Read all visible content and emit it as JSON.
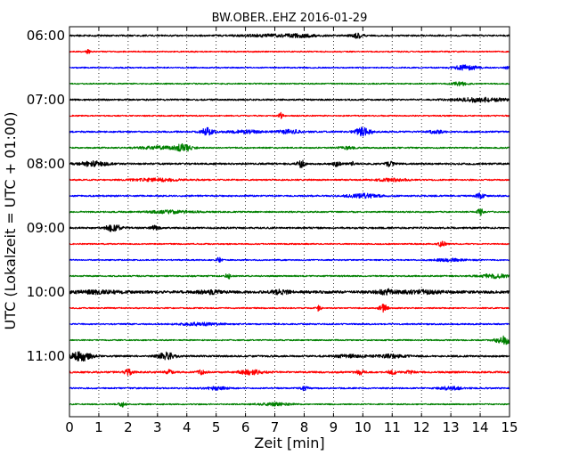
{
  "chart_data": {
    "type": "line",
    "title": "BW.OBER..EHZ 2016-01-29",
    "xlabel": "Zeit  [min]",
    "ylabel": "UTC (Lokalzeit = UTC + 01:00)",
    "xlim": [
      0,
      15
    ],
    "x_ticks": [
      "0",
      "1",
      "2",
      "3",
      "4",
      "5",
      "6",
      "7",
      "8",
      "9",
      "10",
      "11",
      "12",
      "13",
      "14",
      "15"
    ],
    "y_ticks": [
      "06:00",
      "07:00",
      "08:00",
      "09:00",
      "10:00",
      "11:00"
    ],
    "grid": "vertical dotted lines at each minute",
    "trace_interval_min": 15,
    "color_cycle": [
      "#000000",
      "#ff0000",
      "#0000ff",
      "#008000"
    ],
    "traces": [
      {
        "start": "06:00",
        "color": "#000000",
        "noise": 0.9,
        "events": [
          [
            7.0,
            0.8,
            1.2
          ],
          [
            8.0,
            0.3,
            1.2
          ],
          [
            9.8,
            0.15,
            2.4
          ]
        ]
      },
      {
        "start": "06:15",
        "color": "#ff0000",
        "noise": 0.7,
        "events": [
          [
            0.65,
            0.05,
            2.5
          ]
        ]
      },
      {
        "start": "06:30",
        "color": "#0000ff",
        "noise": 0.7,
        "events": [
          [
            13.5,
            0.3,
            2.5
          ],
          [
            15.0,
            0.1,
            2.0
          ]
        ]
      },
      {
        "start": "06:45",
        "color": "#008000",
        "noise": 0.7,
        "events": [
          [
            13.3,
            0.2,
            1.8
          ]
        ]
      },
      {
        "start": "07:00",
        "color": "#000000",
        "noise": 0.9,
        "events": [
          [
            14.0,
            0.6,
            2.2
          ]
        ]
      },
      {
        "start": "07:15",
        "color": "#ff0000",
        "noise": 0.7,
        "events": [
          [
            7.2,
            0.06,
            3.0
          ]
        ]
      },
      {
        "start": "07:30",
        "color": "#0000ff",
        "noise": 0.9,
        "events": [
          [
            4.7,
            0.15,
            4.0
          ],
          [
            6.0,
            0.4,
            1.5
          ],
          [
            7.5,
            0.3,
            2.0
          ],
          [
            10.0,
            0.2,
            4.5
          ],
          [
            12.5,
            0.2,
            1.5
          ]
        ]
      },
      {
        "start": "07:45",
        "color": "#008000",
        "noise": 0.8,
        "events": [
          [
            3.0,
            0.5,
            1.5
          ],
          [
            3.9,
            0.2,
            3.8
          ],
          [
            9.5,
            0.2,
            1.5
          ]
        ]
      },
      {
        "start": "08:00",
        "color": "#000000",
        "noise": 1.0,
        "events": [
          [
            0.8,
            0.35,
            2.5
          ],
          [
            7.9,
            0.1,
            3.5
          ],
          [
            9.1,
            0.1,
            2.5
          ],
          [
            9.7,
            0.1,
            2.0
          ],
          [
            10.9,
            0.1,
            2.5
          ]
        ]
      },
      {
        "start": "08:15",
        "color": "#ff0000",
        "noise": 0.8,
        "events": [
          [
            3.0,
            0.6,
            1.4
          ],
          [
            11.0,
            0.4,
            1.4
          ]
        ]
      },
      {
        "start": "08:30",
        "color": "#0000ff",
        "noise": 0.9,
        "events": [
          [
            10.0,
            0.4,
            2.2
          ],
          [
            14.0,
            0.1,
            3.0
          ]
        ]
      },
      {
        "start": "08:45",
        "color": "#008000",
        "noise": 0.8,
        "events": [
          [
            3.5,
            0.6,
            1.5
          ],
          [
            14.0,
            0.06,
            5.0
          ]
        ]
      },
      {
        "start": "09:00",
        "color": "#000000",
        "noise": 1.0,
        "events": [
          [
            1.5,
            0.2,
            3.5
          ],
          [
            2.9,
            0.1,
            2.0
          ]
        ]
      },
      {
        "start": "09:15",
        "color": "#ff0000",
        "noise": 0.7,
        "events": [
          [
            12.7,
            0.1,
            2.8
          ]
        ]
      },
      {
        "start": "09:30",
        "color": "#0000ff",
        "noise": 0.7,
        "events": [
          [
            5.1,
            0.06,
            3.0
          ],
          [
            13.0,
            0.4,
            1.5
          ]
        ]
      },
      {
        "start": "09:45",
        "color": "#008000",
        "noise": 0.8,
        "events": [
          [
            5.4,
            0.05,
            4.0
          ],
          [
            14.5,
            0.4,
            2.0
          ]
        ]
      },
      {
        "start": "10:00",
        "color": "#000000",
        "noise": 1.5,
        "events": [
          [
            1.0,
            0.5,
            1.4
          ],
          [
            4.8,
            0.3,
            1.5
          ],
          [
            7.2,
            0.2,
            2.0
          ],
          [
            10.8,
            0.2,
            2.5
          ],
          [
            12.0,
            0.5,
            1.4
          ]
        ]
      },
      {
        "start": "10:15",
        "color": "#ff0000",
        "noise": 0.7,
        "events": [
          [
            8.5,
            0.06,
            3.5
          ],
          [
            10.7,
            0.1,
            4.0
          ]
        ]
      },
      {
        "start": "10:30",
        "color": "#0000ff",
        "noise": 0.8,
        "events": [
          [
            4.5,
            0.5,
            1.4
          ]
        ]
      },
      {
        "start": "10:45",
        "color": "#008000",
        "noise": 0.7,
        "events": [
          [
            14.8,
            0.2,
            4.5
          ]
        ]
      },
      {
        "start": "11:00",
        "color": "#000000",
        "noise": 1.0,
        "events": [
          [
            0.4,
            0.25,
            5.0
          ],
          [
            3.3,
            0.2,
            4.0
          ],
          [
            9.5,
            0.3,
            1.5
          ],
          [
            11.0,
            0.4,
            1.5
          ]
        ]
      },
      {
        "start": "11:15",
        "color": "#ff0000",
        "noise": 1.0,
        "events": [
          [
            2.0,
            0.1,
            3.0
          ],
          [
            3.4,
            0.1,
            2.2
          ],
          [
            4.5,
            0.1,
            2.2
          ],
          [
            6.2,
            0.3,
            2.5
          ],
          [
            9.9,
            0.1,
            2.5
          ],
          [
            11.0,
            0.1,
            2.0
          ],
          [
            11.6,
            0.1,
            2.0
          ]
        ]
      },
      {
        "start": "11:30",
        "color": "#0000ff",
        "noise": 0.8,
        "events": [
          [
            5.0,
            0.3,
            1.6
          ],
          [
            8.0,
            0.1,
            2.5
          ],
          [
            13.0,
            0.3,
            1.6
          ]
        ]
      },
      {
        "start": "11:45",
        "color": "#008000",
        "noise": 0.7,
        "events": [
          [
            1.8,
            0.08,
            2.8
          ],
          [
            7.0,
            0.4,
            1.4
          ]
        ]
      }
    ]
  }
}
